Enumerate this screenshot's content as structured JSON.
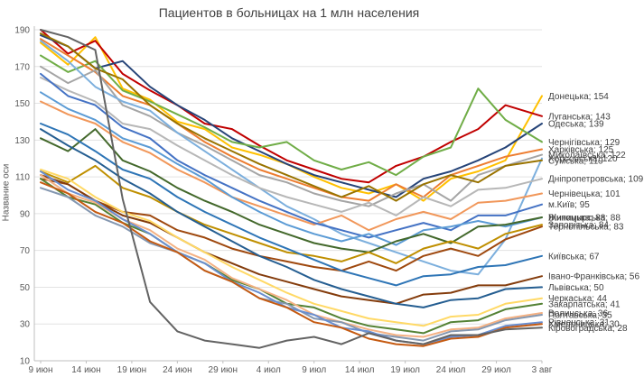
{
  "title": "Пациентов в больницах на 1 млн населения",
  "colors": {
    "background": "#FFFFFF",
    "grid": "#E3E3E3",
    "axis": "#BFBFBF",
    "tick_text": "#595959",
    "title_text": "#3F3F3F",
    "end_label_text": "#404040"
  },
  "chart_data": {
    "type": "line",
    "title": "Пациентов в больницах на 1 млн населения",
    "xlabel": "",
    "ylabel": "Название оси",
    "ylim": [
      10,
      190
    ],
    "ytick_step": 20,
    "yticks": [
      10,
      30,
      50,
      70,
      90,
      110,
      130,
      150,
      170,
      190
    ],
    "grid": true,
    "legend_position": "right-end-labels",
    "x_tick_labels": [
      "9 июн",
      "14 июн",
      "19 июн",
      "24 июн",
      "29 июн",
      "4 июл",
      "9 июл",
      "14 июл",
      "19 июл",
      "24 июл",
      "29 июл",
      "3 авг"
    ],
    "x_tick_days": [
      0,
      5,
      10,
      15,
      20,
      25,
      30,
      35,
      40,
      45,
      50,
      55
    ],
    "x_days": [
      0,
      3,
      6,
      9,
      12,
      15,
      18,
      21,
      24,
      27,
      30,
      33,
      36,
      39,
      42,
      45,
      48,
      51,
      55
    ],
    "series": [
      {
        "name": "Донецька",
        "end_value": 154,
        "end_label": "Донецька; 154",
        "color": "#FFC000",
        "values": [
          183,
          171,
          186,
          158,
          152,
          140,
          136,
          126,
          122,
          117,
          110,
          104,
          101,
          106,
          97,
          109,
          113,
          119,
          154
        ]
      },
      {
        "name": "Луганська",
        "end_value": 143,
        "end_label": "Луганська; 143",
        "color": "#C00000",
        "values": [
          190,
          177,
          184,
          166,
          157,
          149,
          139,
          136,
          127,
          119,
          114,
          109,
          107,
          116,
          121,
          129,
          136,
          149,
          143
        ]
      },
      {
        "name": "Одеська",
        "end_value": 139,
        "end_label": "Одеська; 139",
        "color": "#264478",
        "values": [
          187,
          181,
          169,
          173,
          159,
          149,
          141,
          131,
          124,
          117,
          111,
          107,
          103,
          99,
          109,
          113,
          119,
          126,
          139
        ]
      },
      {
        "name": "Чернігівська",
        "end_value": 129,
        "end_label": "Чернігівська; 129",
        "color": "#70AD47",
        "values": [
          176,
          167,
          173,
          157,
          151,
          144,
          137,
          129,
          126,
          129,
          119,
          114,
          118,
          111,
          121,
          126,
          158,
          141,
          129
        ]
      },
      {
        "name": "Харківська",
        "end_value": 125,
        "end_label": "Харківська; 125",
        "color": "#ED7D31",
        "values": [
          185,
          176,
          167,
          154,
          149,
          139,
          129,
          121,
          114,
          109,
          104,
          99,
          97,
          106,
          99,
          111,
          116,
          121,
          125
        ]
      },
      {
        "name": "Миколаївська",
        "end_value": 122,
        "end_label": "Миколаївська; 122",
        "color": "#A5A5A5",
        "values": [
          170,
          161,
          168,
          149,
          143,
          134,
          127,
          119,
          111,
          107,
          101,
          97,
          94,
          101,
          106,
          97,
          111,
          116,
          122
        ]
      },
      {
        "name": "Херсонська",
        "end_value": 120,
        "end_label": "Херсонська; 120",
        "color": "#7CAFDD",
        "values": [
          184,
          173,
          159,
          151,
          146,
          134,
          124,
          114,
          104,
          94,
          87,
          79,
          74,
          69,
          64,
          59,
          57,
          76,
          120
        ]
      },
      {
        "name": "Сумська",
        "end_value": 119,
        "end_label": "Сумська; 119",
        "color": "#997300",
        "values": [
          188,
          181,
          169,
          163,
          149,
          139,
          131,
          124,
          117,
          111,
          105,
          99,
          105,
          97,
          106,
          111,
          107,
          116,
          119
        ]
      },
      {
        "name": "Дніпропетровська",
        "end_value": 109,
        "end_label": "Дніпропетровська; 109",
        "color": "#B7B7B7",
        "values": [
          164,
          157,
          151,
          139,
          136,
          127,
          119,
          111,
          104,
          99,
          95,
          91,
          96,
          89,
          99,
          94,
          103,
          104,
          109
        ]
      },
      {
        "name": "Чернівецька",
        "end_value": 101,
        "end_label": "Чернівецька; 101",
        "color": "#F1975A",
        "values": [
          151,
          144,
          139,
          129,
          123,
          114,
          107,
          99,
          94,
          89,
          84,
          89,
          81,
          87,
          91,
          87,
          96,
          97,
          101
        ]
      },
      {
        "name": "м.Київ",
        "end_value": 95,
        "end_label": "м.Київ; 95",
        "color": "#4472C4",
        "values": [
          166,
          154,
          149,
          137,
          131,
          119,
          111,
          104,
          97,
          91,
          85,
          81,
          77,
          81,
          85,
          81,
          89,
          89,
          95
        ]
      },
      {
        "name": "Вінницька",
        "end_value": 88,
        "end_label": "Вінницька; 88",
        "color": "#5B9BD5",
        "values": [
          156,
          147,
          141,
          131,
          126,
          117,
          109,
          99,
          91,
          84,
          79,
          75,
          79,
          73,
          81,
          83,
          86,
          83,
          88
        ]
      },
      {
        "name": "Житомирська",
        "end_value": 88,
        "end_label": "Житомирська; 88",
        "color": "#43682B",
        "values": [
          131,
          124,
          136,
          119,
          113,
          104,
          97,
          91,
          84,
          79,
          74,
          71,
          69,
          75,
          79,
          74,
          83,
          84,
          88
        ]
      },
      {
        "name": "Запорізька",
        "end_value": 84,
        "end_label": "Запорізька; 84",
        "color": "#BF8F00",
        "values": [
          113,
          107,
          116,
          104,
          99,
          91,
          84,
          79,
          74,
          69,
          67,
          64,
          69,
          63,
          71,
          75,
          71,
          79,
          84
        ]
      },
      {
        "name": "Тернопільська",
        "end_value": 83,
        "end_label": "Тернопільська; 83",
        "color": "#9E480E",
        "values": [
          109,
          106,
          97,
          91,
          89,
          81,
          77,
          71,
          67,
          64,
          61,
          59,
          64,
          59,
          67,
          71,
          67,
          76,
          83
        ]
      },
      {
        "name": "Київська",
        "end_value": 67,
        "end_label": "Київська; 67",
        "color": "#2E75B6",
        "values": [
          139,
          133,
          124,
          114,
          109,
          99,
          91,
          84,
          77,
          71,
          65,
          59,
          55,
          51,
          56,
          57,
          61,
          62,
          67
        ]
      },
      {
        "name": "Івано-Франківська",
        "end_value": 56,
        "end_label": "Івано-Франківська; 56",
        "color": "#843C0C",
        "values": [
          111,
          106,
          97,
          89,
          85,
          77,
          69,
          63,
          57,
          53,
          49,
          45,
          43,
          41,
          46,
          47,
          51,
          51,
          56
        ]
      },
      {
        "name": "Львівська",
        "end_value": 50,
        "end_label": "Львівська; 50",
        "color": "#255E91",
        "values": [
          136,
          127,
          119,
          109,
          101,
          91,
          83,
          75,
          67,
          61,
          54,
          49,
          45,
          41,
          39,
          43,
          44,
          49,
          50
        ]
      },
      {
        "name": "Черкаська",
        "end_value": 44,
        "end_label": "Черкаська; 44",
        "color": "#FFD966",
        "values": [
          114,
          109,
          99,
          91,
          86,
          77,
          69,
          61,
          54,
          47,
          41,
          37,
          33,
          31,
          29,
          34,
          35,
          41,
          44
        ]
      },
      {
        "name": "Закарпатська",
        "end_value": 41,
        "end_label": "Закарпатська; 41",
        "color": "#548235",
        "values": [
          109,
          99,
          95,
          85,
          79,
          69,
          63,
          54,
          49,
          41,
          39,
          33,
          29,
          27,
          25,
          31,
          32,
          38,
          41
        ]
      },
      {
        "name": "Волинська",
        "end_value": 36,
        "end_label": "Волинська; 36",
        "color": "#F4B183",
        "values": [
          111,
          101,
          96,
          87,
          81,
          71,
          65,
          55,
          49,
          43,
          35,
          31,
          27,
          24,
          23,
          27,
          28,
          33,
          36
        ]
      },
      {
        "name": "Полтавська",
        "end_value": 35,
        "end_label": "Полтавська; 35",
        "color": "#8497B0",
        "values": [
          104,
          99,
          89,
          83,
          74,
          69,
          59,
          53,
          44,
          41,
          33,
          31,
          25,
          23,
          21,
          26,
          27,
          32,
          35
        ]
      },
      {
        "name": "Рівненська",
        "end_value": 31,
        "end_label": "Рівненська; 31",
        "color": "#698ED0",
        "values": [
          113,
          103,
          97,
          87,
          79,
          69,
          63,
          53,
          47,
          39,
          35,
          28,
          26,
          21,
          19,
          23,
          24,
          29,
          31
        ]
      },
      {
        "name": "Хмельницька",
        "end_value": 30,
        "end_label": "Хмельницька; 30",
        "color": "#C55A11",
        "values": [
          107,
          101,
          91,
          85,
          75,
          69,
          59,
          53,
          44,
          39,
          31,
          28,
          22,
          19,
          18,
          22,
          23,
          28,
          30
        ]
      },
      {
        "name": "Кіровоградська",
        "end_value": 28,
        "end_label": "Кіровоградська; 28",
        "color": "#636363",
        "values": [
          190,
          186,
          179,
          98,
          42,
          26,
          21,
          19,
          17,
          21,
          23,
          19,
          25,
          21,
          19,
          24,
          24,
          27,
          28
        ]
      }
    ]
  }
}
